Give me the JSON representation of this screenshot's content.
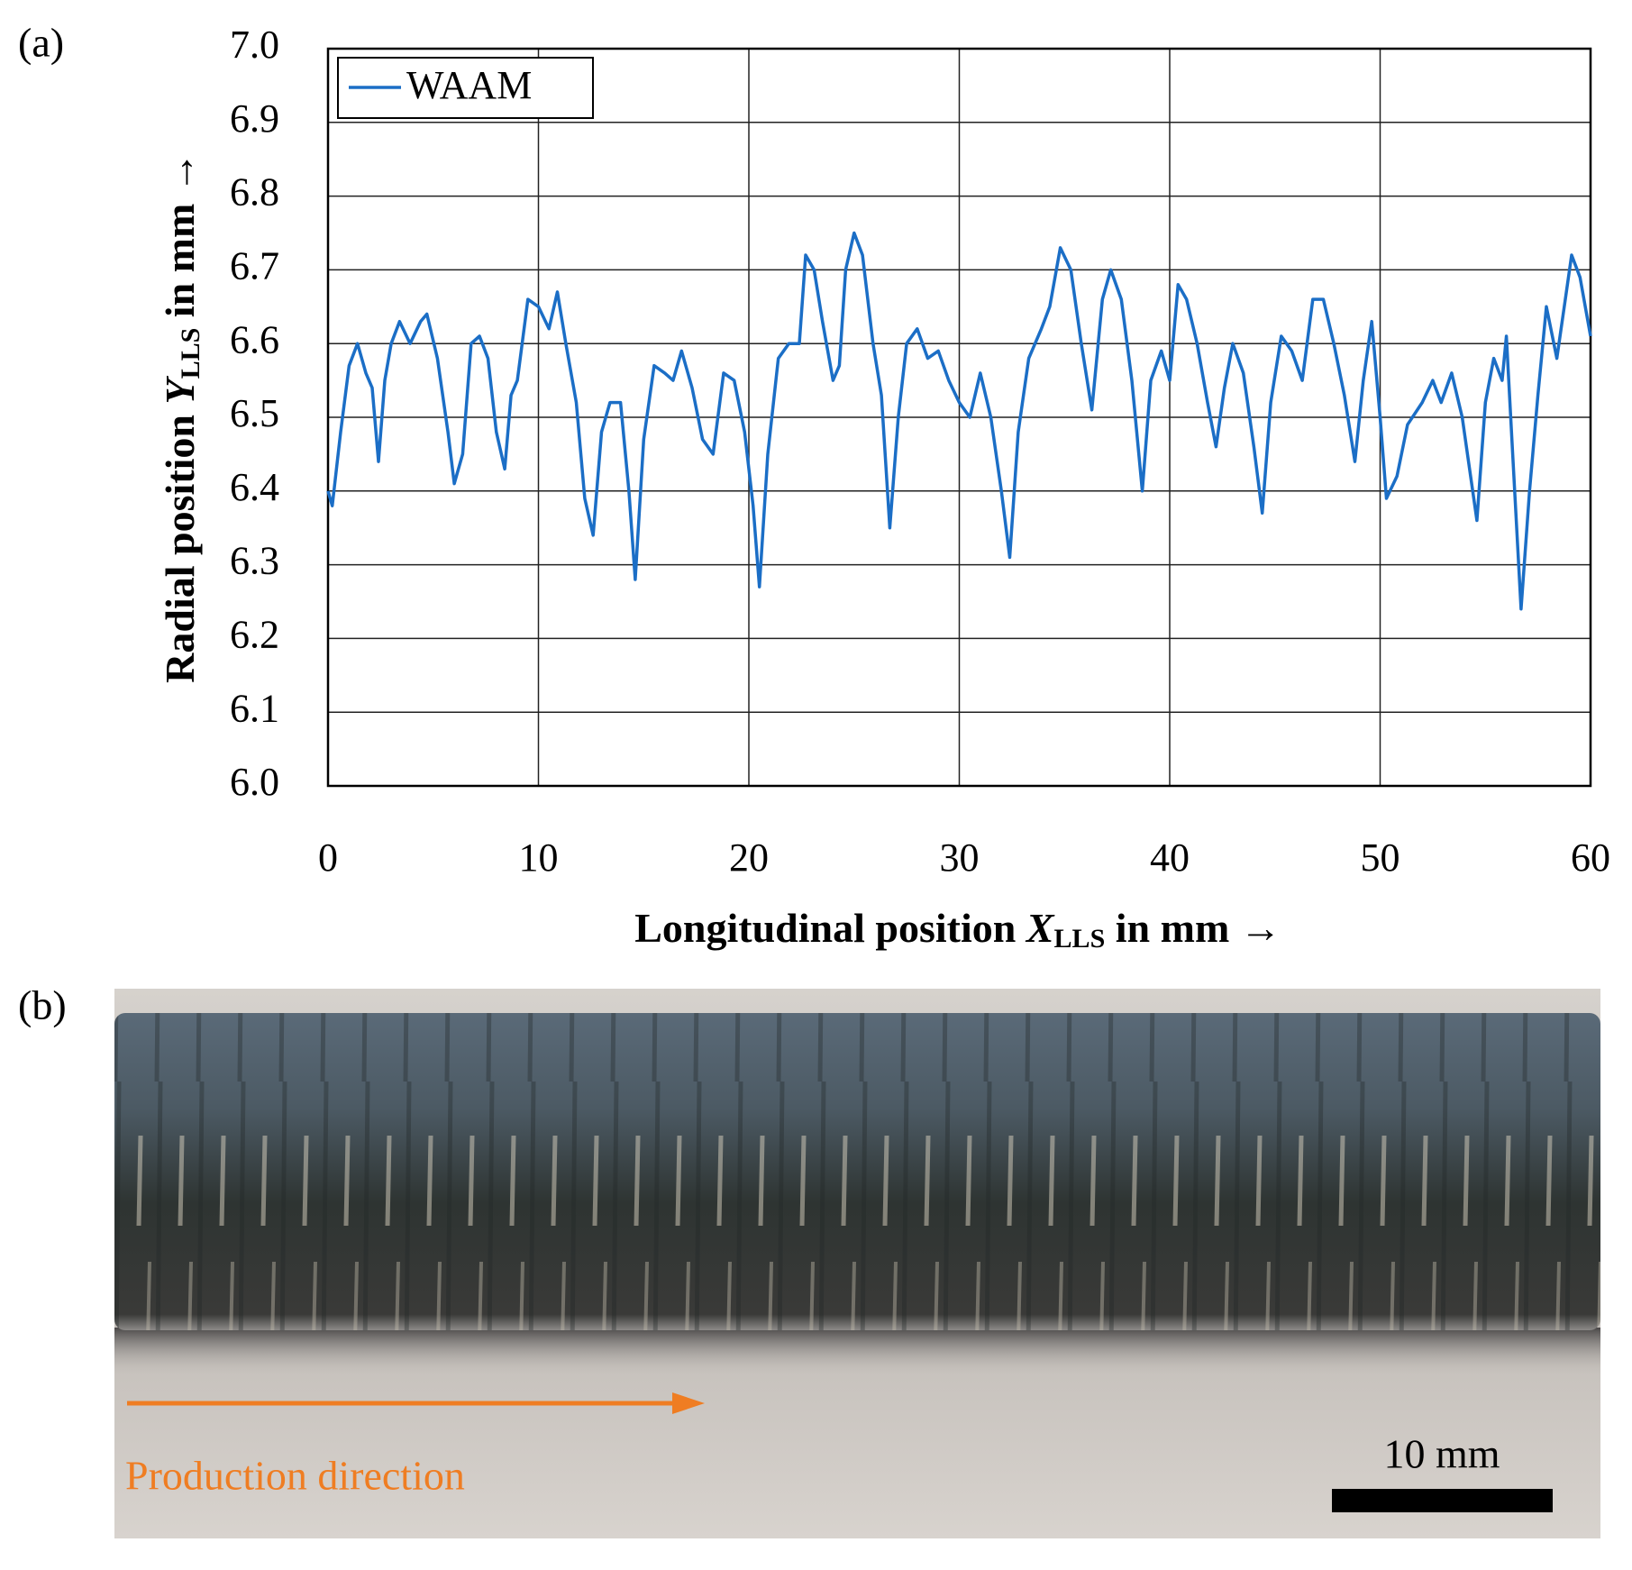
{
  "panel_labels": [
    "(a)",
    "(b)"
  ],
  "chart_data": {
    "type": "line",
    "x_label": {
      "text": "Longitudinal position ",
      "var": "X",
      "sub": "LLS",
      "unit": " in mm →"
    },
    "y_label": {
      "text": "Radial position ",
      "var": "Y",
      "sub": "LLS",
      "unit": " in mm →"
    },
    "x": [
      0,
      0.2,
      0.6,
      1.0,
      1.4,
      1.8,
      2.1,
      2.4,
      2.7,
      3.0,
      3.4,
      3.9,
      4.4,
      4.7,
      5.2,
      5.7,
      6.0,
      6.4,
      6.8,
      7.2,
      7.6,
      8.0,
      8.4,
      8.7,
      9.0,
      9.5,
      10.0,
      10.5,
      10.9,
      11.3,
      11.8,
      12.2,
      12.6,
      13.0,
      13.4,
      13.9,
      14.3,
      14.6,
      15.0,
      15.5,
      16.0,
      16.4,
      16.8,
      17.3,
      17.8,
      18.3,
      18.8,
      19.3,
      19.8,
      20.2,
      20.5,
      20.9,
      21.4,
      21.9,
      22.4,
      22.7,
      23.1,
      23.5,
      24.0,
      24.3,
      24.6,
      25.0,
      25.4,
      25.9,
      26.3,
      26.7,
      27.1,
      27.5,
      28.0,
      28.5,
      29.0,
      29.5,
      30.0,
      30.5,
      31.0,
      31.5,
      32.0,
      32.4,
      32.8,
      33.3,
      33.9,
      34.3,
      34.8,
      35.3,
      35.8,
      36.3,
      36.8,
      37.2,
      37.7,
      38.2,
      38.7,
      39.1,
      39.6,
      40.0,
      40.4,
      40.8,
      41.3,
      41.8,
      42.2,
      42.6,
      43.0,
      43.5,
      44.0,
      44.4,
      44.8,
      45.3,
      45.8,
      46.3,
      46.8,
      47.3,
      47.8,
      48.3,
      48.8,
      49.2,
      49.6,
      50.0,
      50.3,
      50.8,
      51.3,
      52.0,
      52.5,
      52.9,
      53.4,
      53.9,
      54.3,
      54.6,
      55.0,
      55.4,
      55.8,
      56.0,
      56.3,
      56.7,
      57.1,
      57.5,
      57.9,
      58.4,
      58.8,
      59.1,
      59.5,
      60.0
    ],
    "series": [
      {
        "name": "WAAM",
        "color": "#1b6ec6",
        "values": [
          6.4,
          6.38,
          6.48,
          6.57,
          6.6,
          6.56,
          6.54,
          6.44,
          6.55,
          6.6,
          6.63,
          6.6,
          6.63,
          6.64,
          6.58,
          6.48,
          6.41,
          6.45,
          6.6,
          6.61,
          6.58,
          6.48,
          6.43,
          6.53,
          6.55,
          6.66,
          6.65,
          6.62,
          6.67,
          6.6,
          6.52,
          6.39,
          6.34,
          6.48,
          6.52,
          6.52,
          6.4,
          6.28,
          6.47,
          6.57,
          6.56,
          6.55,
          6.59,
          6.54,
          6.47,
          6.45,
          6.56,
          6.55,
          6.48,
          6.38,
          6.27,
          6.45,
          6.58,
          6.6,
          6.6,
          6.72,
          6.7,
          6.63,
          6.55,
          6.57,
          6.7,
          6.75,
          6.72,
          6.6,
          6.53,
          6.35,
          6.5,
          6.6,
          6.62,
          6.58,
          6.59,
          6.55,
          6.52,
          6.5,
          6.56,
          6.5,
          6.4,
          6.31,
          6.48,
          6.58,
          6.62,
          6.65,
          6.73,
          6.7,
          6.6,
          6.51,
          6.66,
          6.7,
          6.66,
          6.55,
          6.4,
          6.55,
          6.59,
          6.55,
          6.68,
          6.66,
          6.6,
          6.52,
          6.46,
          6.54,
          6.6,
          6.56,
          6.46,
          6.37,
          6.52,
          6.61,
          6.59,
          6.55,
          6.66,
          6.66,
          6.6,
          6.53,
          6.44,
          6.55,
          6.63,
          6.5,
          6.39,
          6.42,
          6.49,
          6.52,
          6.55,
          6.52,
          6.56,
          6.5,
          6.42,
          6.36,
          6.52,
          6.58,
          6.55,
          6.61,
          6.45,
          6.24,
          6.4,
          6.53,
          6.65,
          6.58,
          6.66,
          6.72,
          6.69,
          6.61
        ]
      }
    ],
    "xlim": [
      0,
      60
    ],
    "xticks": [
      0,
      10,
      20,
      30,
      40,
      50,
      60
    ],
    "ylim": [
      6.0,
      7.0
    ],
    "yticks": [
      {
        "value": 6.0,
        "label": "6.0"
      },
      6.1,
      6.2,
      6.3,
      6.4,
      6.5,
      6.6,
      6.7,
      6.8,
      6.9,
      {
        "value": 7.0,
        "label": "7.0"
      }
    ],
    "grid": true,
    "legend": "upper left"
  },
  "photo": {
    "annotation": "Production direction",
    "scale_bar": "10 mm"
  }
}
